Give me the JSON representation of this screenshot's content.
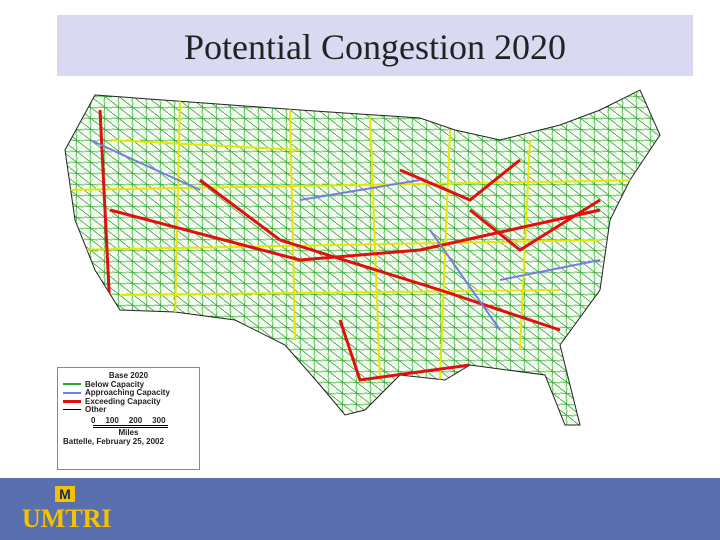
{
  "header": {
    "title": "Potential Congestion 2020"
  },
  "legend": {
    "title": "Base 2020",
    "items": [
      "Below Capacity",
      "Approaching Capacity",
      "Exceeding Capacity",
      "Other"
    ],
    "scale": [
      "0",
      "100",
      "200",
      "300"
    ],
    "scale_unit": "Miles",
    "source": "Battelle, February 25, 2002"
  },
  "footer": {
    "logo_mark": "M",
    "logo_text": "UMTRI"
  }
}
